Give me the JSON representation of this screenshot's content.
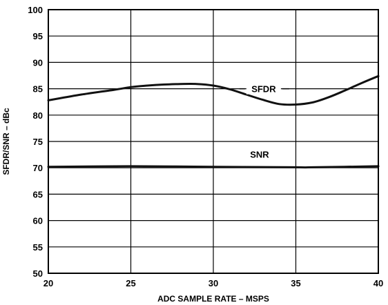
{
  "chart_data": {
    "type": "line",
    "title": "",
    "xlabel": "ADC SAMPLE RATE – MSPS",
    "ylabel": "SFDR/SNR – dBc",
    "xlim": [
      20,
      40
    ],
    "ylim": [
      50,
      100
    ],
    "x_ticks": [
      20,
      25,
      30,
      35,
      40
    ],
    "y_ticks": [
      50,
      55,
      60,
      65,
      70,
      75,
      80,
      85,
      90,
      95,
      100
    ],
    "grid": true,
    "series": [
      {
        "name": "SFDR",
        "x": [
          20,
          22,
          24,
          25,
          26,
          27,
          28,
          29,
          30,
          31,
          32,
          33,
          34,
          35,
          36,
          37,
          38,
          39,
          40
        ],
        "y": [
          82.8,
          83.9,
          84.8,
          85.3,
          85.6,
          85.8,
          85.9,
          85.9,
          85.6,
          84.9,
          83.9,
          82.9,
          82.1,
          82.0,
          82.4,
          83.4,
          84.7,
          86.1,
          87.4
        ]
      },
      {
        "name": "SNR",
        "x": [
          20,
          25,
          30,
          35,
          36,
          40
        ],
        "y": [
          70.2,
          70.3,
          70.2,
          70.1,
          70.1,
          70.3
        ]
      }
    ]
  }
}
